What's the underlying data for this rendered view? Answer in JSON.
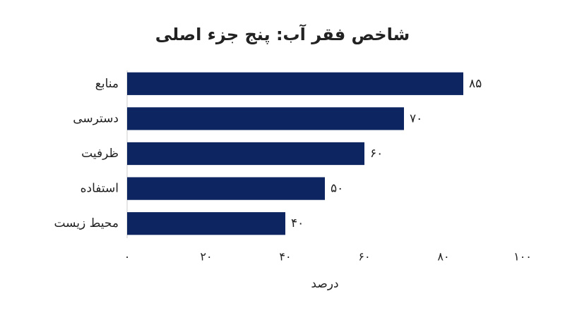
{
  "chart_data": {
    "type": "bar",
    "orientation": "horizontal",
    "title": "شاخص فقر آب: پنج جزء اصلی",
    "x_label": "درصد",
    "categories": [
      "منابع",
      "دسترسی",
      "ظرفیت",
      "استفاده",
      "محیط زیست"
    ],
    "values": [
      85,
      70,
      60,
      50,
      40
    ],
    "value_labels": [
      "۸۵",
      "۷۰",
      "۶۰",
      "۵۰",
      "۴۰"
    ],
    "color": "#0d2560",
    "xlim": [
      0,
      100
    ],
    "xticks": [
      {
        "value": 0,
        "label": "۰"
      },
      {
        "value": 20,
        "label": "۲۰"
      },
      {
        "value": 40,
        "label": "۴۰"
      },
      {
        "value": 60,
        "label": "۶۰"
      },
      {
        "value": 80,
        "label": "۸۰"
      },
      {
        "value": 100,
        "label": "۱۰۰"
      }
    ],
    "grid": false
  }
}
